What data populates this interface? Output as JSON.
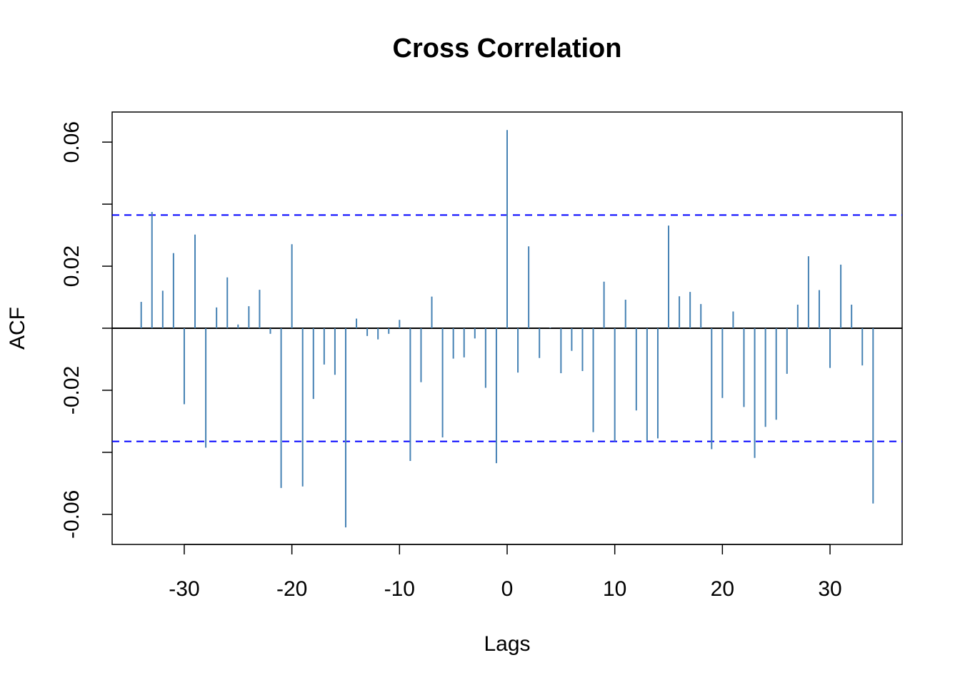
{
  "chart_data": {
    "type": "bar",
    "title": "Cross Correlation",
    "xlabel": "Lags",
    "ylabel": "ACF",
    "xlim": [
      -36.7,
      36.7
    ],
    "ylim": [
      -0.0697,
      0.0697
    ],
    "x_ticks": [
      -30,
      -20,
      -10,
      0,
      10,
      20,
      30
    ],
    "x_tick_labels": [
      "-30",
      "-20",
      "-10",
      "0",
      "10",
      "20",
      "30"
    ],
    "y_ticks": [
      -0.06,
      -0.04,
      -0.02,
      0,
      0.02,
      0.04,
      0.06
    ],
    "y_tick_labels": [
      "-0.06",
      "",
      "-0.02",
      "",
      "0.02",
      "",
      "0.06"
    ],
    "confidence_bound": 0.0365,
    "bar_color": "#4682b4",
    "ci_color": "#0000ff",
    "grid": false,
    "x": [
      -34,
      -33,
      -32,
      -31,
      -30,
      -29,
      -28,
      -27,
      -26,
      -25,
      -24,
      -23,
      -22,
      -21,
      -20,
      -19,
      -18,
      -17,
      -16,
      -15,
      -14,
      -13,
      -12,
      -11,
      -10,
      -9,
      -8,
      -7,
      -6,
      -5,
      -4,
      -3,
      -2,
      -1,
      0,
      1,
      2,
      3,
      4,
      5,
      6,
      7,
      8,
      9,
      10,
      11,
      12,
      13,
      14,
      15,
      16,
      17,
      18,
      19,
      20,
      21,
      22,
      23,
      24,
      25,
      26,
      27,
      28,
      29,
      30,
      31,
      32,
      33,
      34
    ],
    "values": [
      0.0085,
      0.0375,
      0.0121,
      0.0242,
      -0.0245,
      0.0302,
      -0.0385,
      0.0067,
      0.0164,
      0.0012,
      0.0071,
      0.0124,
      -0.0018,
      -0.0515,
      0.0271,
      -0.051,
      -0.0228,
      -0.0117,
      -0.015,
      -0.0642,
      0.0031,
      -0.0025,
      -0.0036,
      -0.0018,
      0.0027,
      -0.0428,
      -0.0174,
      0.0102,
      -0.0352,
      -0.0098,
      -0.0094,
      -0.0033,
      -0.0192,
      -0.0435,
      0.0639,
      -0.0143,
      0.0264,
      -0.0096,
      0.0002,
      -0.0145,
      -0.0073,
      -0.0138,
      -0.0335,
      0.015,
      -0.0365,
      0.0092,
      -0.0265,
      -0.0362,
      -0.0355,
      0.0331,
      0.0103,
      0.0117,
      0.0078,
      -0.039,
      -0.0225,
      0.0054,
      -0.0254,
      -0.0418,
      -0.0318,
      -0.0295,
      -0.0147,
      0.0076,
      0.0232,
      0.0123,
      -0.0128,
      0.0205,
      0.0076,
      -0.012,
      -0.0565
    ]
  }
}
